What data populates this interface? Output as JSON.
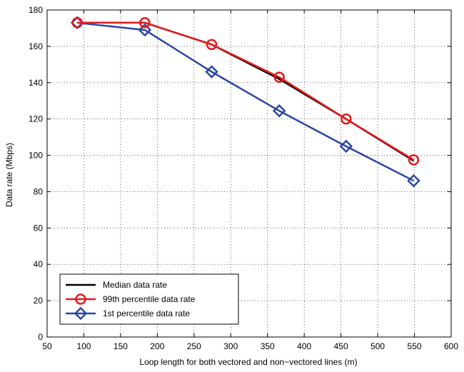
{
  "chart_data": {
    "type": "line",
    "title": "",
    "xlabel": "Loop length for both vectored and non−vectored lines (m)",
    "ylabel": "Data rate (Mbps)",
    "xlim": [
      50,
      600
    ],
    "ylim": [
      0,
      180
    ],
    "xticks": [
      50,
      100,
      150,
      200,
      250,
      300,
      350,
      400,
      450,
      500,
      550,
      600
    ],
    "yticks": [
      0,
      20,
      40,
      60,
      80,
      100,
      120,
      140,
      160,
      180
    ],
    "grid": true,
    "legend_position": "bottom-left",
    "x": [
      91,
      183,
      274,
      366,
      457,
      549
    ],
    "series": [
      {
        "name": "Median data rate",
        "color": "#000000",
        "marker": "none",
        "values": [
          173,
          173,
          161,
          142,
          120,
          97
        ]
      },
      {
        "name": "99th percentile data rate",
        "color": "#e41a1c",
        "marker": "circle",
        "values": [
          173,
          173,
          161,
          143,
          120,
          97.5
        ]
      },
      {
        "name": " 1st percentile data rate",
        "color": "#2c47a3",
        "marker": "diamond",
        "values": [
          173,
          169,
          146,
          124.5,
          105,
          86
        ]
      }
    ]
  }
}
